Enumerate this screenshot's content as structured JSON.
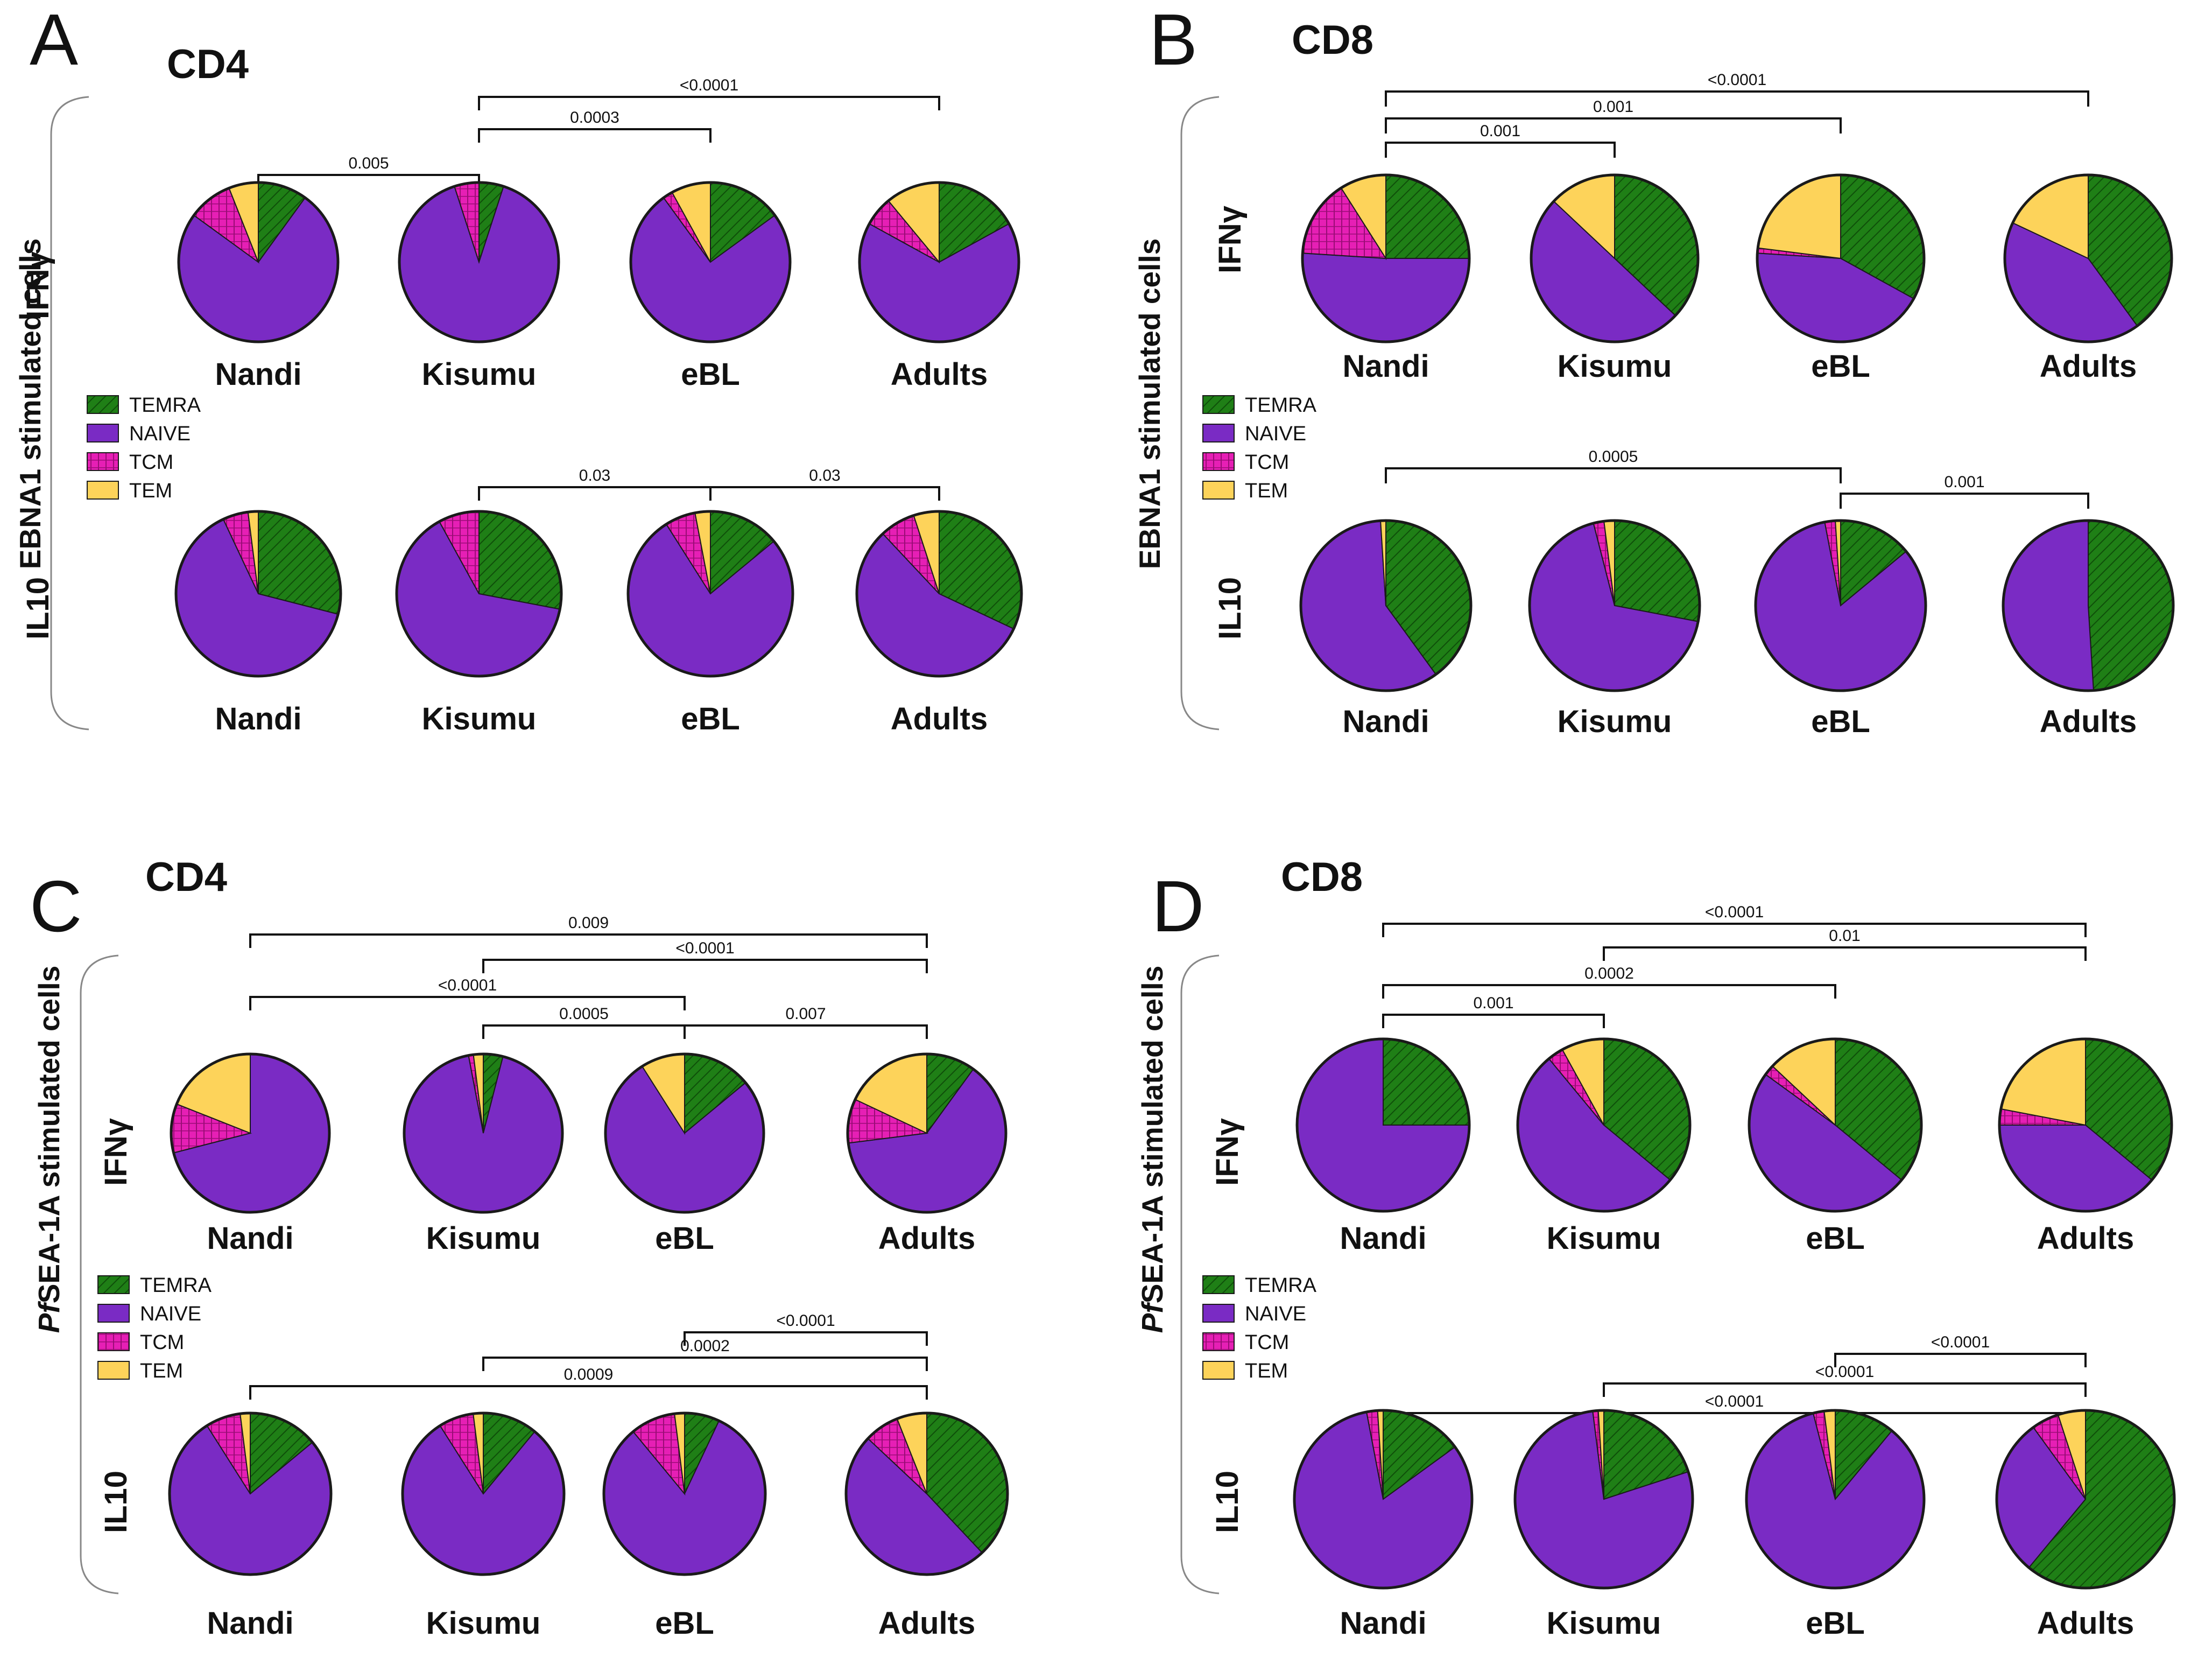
{
  "colors": {
    "TEMRA": "#1f7f16",
    "NAIVE": "#7a2bc4",
    "TCM": "#e61fb5",
    "TEM": "#fdd35a"
  },
  "legend": [
    "TEMRA",
    "NAIVE",
    "TCM",
    "TEM"
  ],
  "chart_data": [
    {
      "panel": "A",
      "title": "CD4",
      "type": "pie",
      "stimulation_label": "EBNA1 stimulated cells",
      "groups": [
        "Nandi",
        "Kisumu",
        "eBL",
        "Adults"
      ],
      "rows": [
        {
          "label": "IFNγ",
          "pies": [
            {
              "group": "Nandi",
              "TEMRA": 10,
              "NAIVE": 75,
              "TCM": 9,
              "TEM": 6
            },
            {
              "group": "Kisumu",
              "TEMRA": 5,
              "NAIVE": 90,
              "TCM": 5,
              "TEM": 0
            },
            {
              "group": "eBL",
              "TEMRA": 15,
              "NAIVE": 75,
              "TCM": 2,
              "TEM": 8
            },
            {
              "group": "Adults",
              "TEMRA": 17,
              "NAIVE": 66,
              "TCM": 6,
              "TEM": 11
            }
          ],
          "comparisons": [
            {
              "from": "Nandi",
              "to": "Kisumu",
              "p": "0.005"
            },
            {
              "from": "Kisumu",
              "to": "eBL",
              "p": "0.0003"
            },
            {
              "from": "Kisumu",
              "to": "Adults",
              "p": "<0.0001"
            }
          ]
        },
        {
          "label": "IL10",
          "pies": [
            {
              "group": "Nandi",
              "TEMRA": 29,
              "NAIVE": 64,
              "TCM": 5,
              "TEM": 2
            },
            {
              "group": "Kisumu",
              "TEMRA": 28,
              "NAIVE": 64,
              "TCM": 8,
              "TEM": 0
            },
            {
              "group": "eBL",
              "TEMRA": 14,
              "NAIVE": 77,
              "TCM": 6,
              "TEM": 3
            },
            {
              "group": "Adults",
              "TEMRA": 32,
              "NAIVE": 56,
              "TCM": 7,
              "TEM": 5
            }
          ],
          "comparisons": [
            {
              "from": "Kisumu",
              "to": "eBL",
              "p": "0.03"
            },
            {
              "from": "eBL",
              "to": "Adults",
              "p": "0.03"
            }
          ]
        }
      ]
    },
    {
      "panel": "B",
      "title": "CD8",
      "type": "pie",
      "stimulation_label": "EBNA1 stimulated cells",
      "groups": [
        "Nandi",
        "Kisumu",
        "eBL",
        "Adults"
      ],
      "rows": [
        {
          "label": "IFNγ",
          "pies": [
            {
              "group": "Nandi",
              "TEMRA": 25,
              "NAIVE": 51,
              "TCM": 15,
              "TEM": 9
            },
            {
              "group": "Kisumu",
              "TEMRA": 37,
              "NAIVE": 50,
              "TCM": 0,
              "TEM": 13
            },
            {
              "group": "eBL",
              "TEMRA": 33,
              "NAIVE": 43,
              "TCM": 1,
              "TEM": 23
            },
            {
              "group": "Adults",
              "TEMRA": 40,
              "NAIVE": 42,
              "TCM": 0,
              "TEM": 18
            }
          ],
          "comparisons": [
            {
              "from": "Nandi",
              "to": "Kisumu",
              "p": "0.001"
            },
            {
              "from": "Nandi",
              "to": "eBL",
              "p": "0.001"
            },
            {
              "from": "Nandi",
              "to": "Adults",
              "p": "<0.0001"
            }
          ]
        },
        {
          "label": "IL10",
          "pies": [
            {
              "group": "Nandi",
              "TEMRA": 40,
              "NAIVE": 59,
              "TCM": 0,
              "TEM": 1
            },
            {
              "group": "Kisumu",
              "TEMRA": 28,
              "NAIVE": 68,
              "TCM": 2,
              "TEM": 2
            },
            {
              "group": "eBL",
              "TEMRA": 14,
              "NAIVE": 83,
              "TCM": 2,
              "TEM": 1
            },
            {
              "group": "Adults",
              "TEMRA": 49,
              "NAIVE": 51,
              "TCM": 0,
              "TEM": 0
            }
          ],
          "comparisons": [
            {
              "from": "Nandi",
              "to": "eBL",
              "p": "0.0005"
            },
            {
              "from": "eBL",
              "to": "Adults",
              "p": "0.001"
            }
          ]
        }
      ]
    },
    {
      "panel": "C",
      "title": "CD4",
      "type": "pie",
      "stimulation_label": "SEA-1A stimulated cells",
      "stimulation_prefix": "Pf",
      "groups": [
        "Nandi",
        "Kisumu",
        "eBL",
        "Adults"
      ],
      "rows": [
        {
          "label": "IFNγ",
          "pies": [
            {
              "group": "Nandi",
              "TEMRA": 0,
              "NAIVE": 71,
              "TCM": 10,
              "TEM": 19
            },
            {
              "group": "Kisumu",
              "TEMRA": 4,
              "NAIVE": 93,
              "TCM": 1,
              "TEM": 2
            },
            {
              "group": "eBL",
              "TEMRA": 14,
              "NAIVE": 77,
              "TCM": 0,
              "TEM": 9
            },
            {
              "group": "Adults",
              "TEMRA": 10,
              "NAIVE": 63,
              "TCM": 9,
              "TEM": 18
            }
          ],
          "comparisons": [
            {
              "from": "Kisumu",
              "to": "eBL",
              "p": "0.0005"
            },
            {
              "from": "eBL",
              "to": "Adults",
              "p": "0.007"
            },
            {
              "from": "Nandi",
              "to": "eBL",
              "p": "<0.0001"
            },
            {
              "from": "Kisumu",
              "to": "Adults",
              "p": "<0.0001"
            },
            {
              "from": "Nandi",
              "to": "Adults",
              "p": "0.009"
            }
          ]
        },
        {
          "label": "IL10",
          "pies": [
            {
              "group": "Nandi",
              "TEMRA": 14,
              "NAIVE": 77,
              "TCM": 7,
              "TEM": 2
            },
            {
              "group": "Kisumu",
              "TEMRA": 11,
              "NAIVE": 80,
              "TCM": 7,
              "TEM": 2
            },
            {
              "group": "eBL",
              "TEMRA": 7,
              "NAIVE": 82,
              "TCM": 9,
              "TEM": 2
            },
            {
              "group": "Adults",
              "TEMRA": 38,
              "NAIVE": 49,
              "TCM": 7,
              "TEM": 6
            }
          ],
          "comparisons": [
            {
              "from": "eBL",
              "to": "Adults",
              "p": "<0.0001"
            },
            {
              "from": "Kisumu",
              "to": "Adults",
              "p": "0.0002"
            },
            {
              "from": "Nandi",
              "to": "Adults",
              "p": "0.0009"
            }
          ]
        }
      ]
    },
    {
      "panel": "D",
      "title": "CD8",
      "type": "pie",
      "stimulation_label": "SEA-1A stimulated cells",
      "stimulation_prefix": "Pf",
      "groups": [
        "Nandi",
        "Kisumu",
        "eBL",
        "Adults"
      ],
      "rows": [
        {
          "label": "IFNγ",
          "pies": [
            {
              "group": "Nandi",
              "TEMRA": 25,
              "NAIVE": 75,
              "TCM": 0,
              "TEM": 0
            },
            {
              "group": "Kisumu",
              "TEMRA": 36,
              "NAIVE": 53,
              "TCM": 3,
              "TEM": 8
            },
            {
              "group": "eBL",
              "TEMRA": 36,
              "NAIVE": 49,
              "TCM": 2,
              "TEM": 13
            },
            {
              "group": "Adults",
              "TEMRA": 36,
              "NAIVE": 39,
              "TCM": 3,
              "TEM": 22
            }
          ],
          "comparisons": [
            {
              "from": "Nandi",
              "to": "Kisumu",
              "p": "0.001"
            },
            {
              "from": "Nandi",
              "to": "eBL",
              "p": "0.0002"
            },
            {
              "from": "Kisumu",
              "to": "Adults",
              "p": "0.01"
            },
            {
              "from": "Nandi",
              "to": "Adults",
              "p": "<0.0001"
            }
          ]
        },
        {
          "label": "IL10",
          "pies": [
            {
              "group": "Nandi",
              "TEMRA": 15,
              "NAIVE": 82,
              "TCM": 2,
              "TEM": 1
            },
            {
              "group": "Kisumu",
              "TEMRA": 20,
              "NAIVE": 78,
              "TCM": 1,
              "TEM": 1
            },
            {
              "group": "eBL",
              "TEMRA": 11,
              "NAIVE": 85,
              "TCM": 2,
              "TEM": 2
            },
            {
              "group": "Adults",
              "TEMRA": 61,
              "NAIVE": 29,
              "TCM": 5,
              "TEM": 5
            }
          ],
          "comparisons": [
            {
              "from": "eBL",
              "to": "Adults",
              "p": "<0.0001"
            },
            {
              "from": "Kisumu",
              "to": "Adults",
              "p": "<0.0001"
            },
            {
              "from": "Nandi",
              "to": "Adults",
              "p": "<0.0001"
            }
          ]
        }
      ]
    }
  ]
}
